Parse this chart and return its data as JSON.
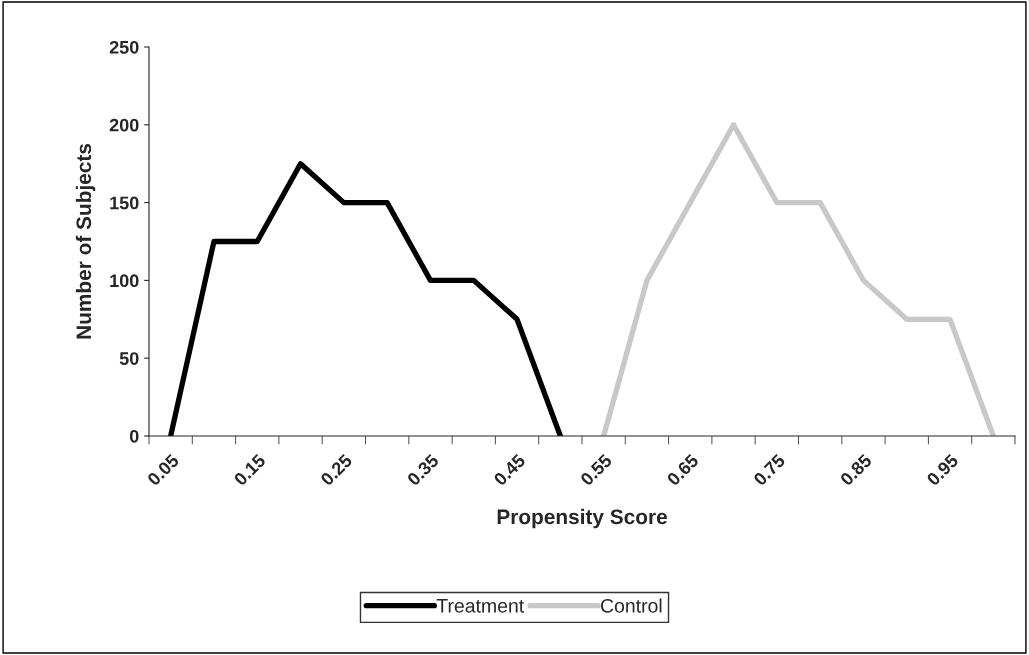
{
  "chart_data": {
    "type": "line",
    "xlabel": "Propensity Score",
    "ylabel": "Number of Subjects",
    "categories": [
      "0.05",
      null,
      "0.15",
      null,
      "0.25",
      null,
      "0.35",
      null,
      "0.45",
      null,
      "0.55",
      null,
      "0.65",
      null,
      "0.75",
      null,
      "0.85",
      null,
      "0.95",
      null
    ],
    "series": [
      {
        "name": "Treatment",
        "color": "#000000",
        "values": [
          0,
          125,
          125,
          175,
          150,
          150,
          100,
          100,
          75,
          0,
          null,
          null,
          null,
          null,
          null,
          null,
          null,
          null,
          null,
          null
        ]
      },
      {
        "name": "Control",
        "color": "#c8c8c8",
        "values": [
          null,
          null,
          null,
          null,
          null,
          null,
          null,
          null,
          null,
          null,
          0,
          100,
          150,
          200,
          150,
          150,
          100,
          75,
          75,
          0
        ]
      }
    ],
    "ylim": [
      0,
      250
    ],
    "yticks": [
      0,
      50,
      100,
      150,
      200,
      250
    ],
    "grid": false,
    "legend": "bottom",
    "marker": "none",
    "line_style": "solid"
  }
}
